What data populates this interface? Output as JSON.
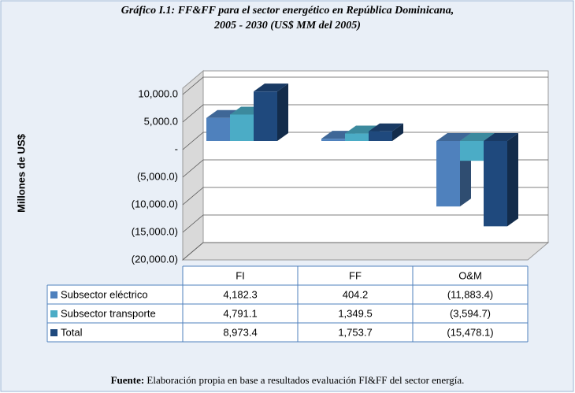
{
  "chart_data": {
    "type": "bar3d",
    "title": [
      "Gráfico I.1: FF&FF para el sector energético en República Dominicana,",
      "2005 - 2030 (US$ MM del 2005)"
    ],
    "y_label": "Millones de US$",
    "categories": [
      "FI",
      "FF",
      "O&M"
    ],
    "series": [
      {
        "name": "Subsector eléctrico",
        "color": "#4f81bd",
        "values": [
          4182.3,
          404.2,
          -11883.4
        ],
        "value_labels": [
          "4,182.3",
          "404.2",
          "(11,883.4)"
        ]
      },
      {
        "name": "Subsector transporte",
        "color": "#4bacc6",
        "values": [
          4791.1,
          1349.5,
          -3594.7
        ],
        "value_labels": [
          "4,791.1",
          "1,349.5",
          "(3,594.7)"
        ]
      },
      {
        "name": "Total",
        "color": "#1f497d",
        "values": [
          8973.4,
          1753.7,
          -15478.1
        ],
        "value_labels": [
          "8,973.4",
          "1,753.7",
          "(15,478.1)"
        ]
      }
    ],
    "ylim": [
      -20000,
      10000
    ],
    "yticks": [
      {
        "value": 10000,
        "label": "10,000.0"
      },
      {
        "value": 5000,
        "label": "5,000.0"
      },
      {
        "value": 0,
        "label": "-"
      },
      {
        "value": -5000,
        "label": "(5,000.0)"
      },
      {
        "value": -10000,
        "label": "(10,000.0)"
      },
      {
        "value": -15000,
        "label": "(15,000.0)"
      },
      {
        "value": -20000,
        "label": "(20,000.0)"
      }
    ],
    "grid": true,
    "source_label": "Fuente:",
    "source": "Elaboración propia en base a resultados evaluación FI&FF del sector energía."
  }
}
